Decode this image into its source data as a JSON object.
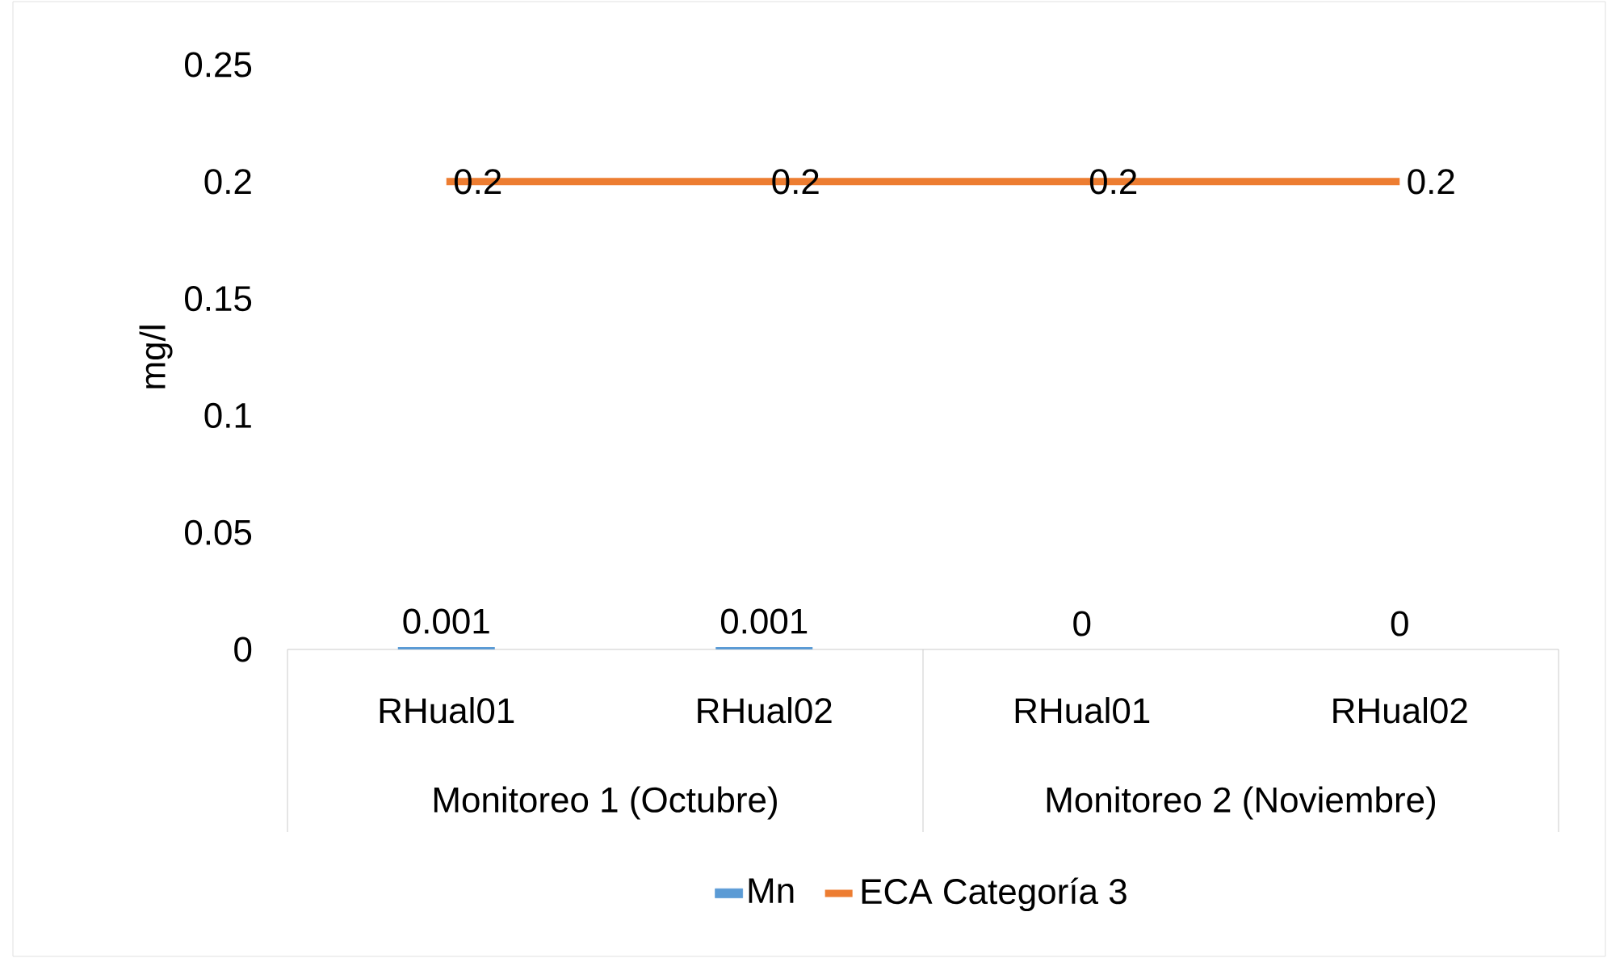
{
  "chart_data": {
    "type": "bar",
    "ylabel": "mg/l",
    "categories": [
      "RHual01",
      "RHual02",
      "RHual01",
      "RHual02"
    ],
    "annotations": [
      "Monitoreo 1 (Octubre)",
      "Monitoreo 2 (Noviembre)"
    ],
    "series": [
      {
        "name": "Mn",
        "color": "#5b9bd5",
        "values": [
          0.001,
          0.001,
          0,
          0
        ]
      },
      {
        "name": "ECA Categoría 3",
        "type": "line",
        "color": "#ed7d31",
        "values": [
          0.2,
          0.2,
          0.2,
          0.2
        ]
      }
    ],
    "ylim": [
      0,
      0.25
    ],
    "yticks": [
      0,
      0.05,
      0.1,
      0.15,
      0.2,
      0.25
    ],
    "data_labels": true,
    "legend": "bottom",
    "marker": "none",
    "line_style": "solid"
  }
}
